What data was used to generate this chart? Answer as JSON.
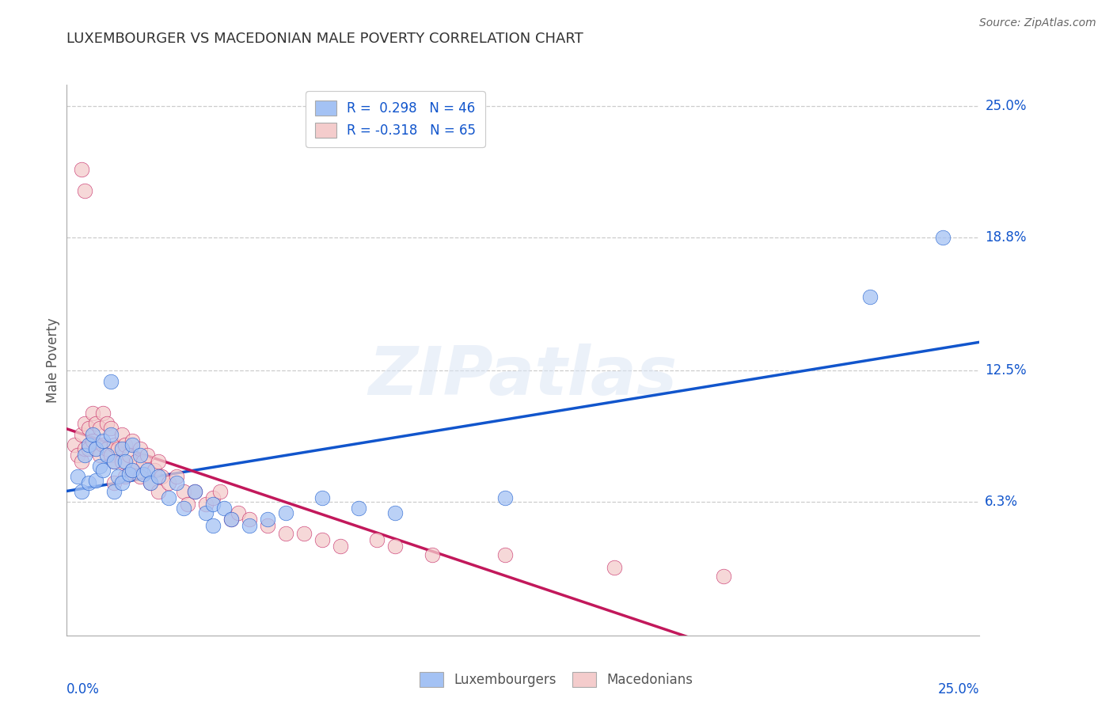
{
  "title": "LUXEMBOURGER VS MACEDONIAN MALE POVERTY CORRELATION CHART",
  "source": "Source: ZipAtlas.com",
  "ylabel": "Male Poverty",
  "xlim": [
    0.0,
    0.25
  ],
  "ylim": [
    0.0,
    0.25
  ],
  "xtick_labels": [
    "0.0%",
    "25.0%"
  ],
  "ytick_labels": [
    "6.3%",
    "12.5%",
    "18.8%",
    "25.0%"
  ],
  "ytick_values": [
    0.063,
    0.125,
    0.188,
    0.25
  ],
  "legend_r1": "R =  0.298",
  "legend_n1": "N = 46",
  "legend_r2": "R = -0.318",
  "legend_n2": "N = 65",
  "lux_color": "#a4c2f4",
  "mac_color": "#f4cccc",
  "lux_line_color": "#1155cc",
  "mac_line_color": "#c2185b",
  "lux_label": "Luxembourgers",
  "mac_label": "Macedonians",
  "watermark_text": "ZIPatlas",
  "lux_scatter_x": [
    0.003,
    0.004,
    0.005,
    0.006,
    0.006,
    0.007,
    0.008,
    0.008,
    0.009,
    0.01,
    0.01,
    0.011,
    0.012,
    0.012,
    0.013,
    0.013,
    0.014,
    0.015,
    0.015,
    0.016,
    0.017,
    0.018,
    0.018,
    0.02,
    0.021,
    0.022,
    0.023,
    0.025,
    0.028,
    0.03,
    0.032,
    0.035,
    0.038,
    0.04,
    0.04,
    0.043,
    0.045,
    0.05,
    0.055,
    0.06,
    0.07,
    0.08,
    0.09,
    0.12,
    0.22,
    0.24
  ],
  "lux_scatter_y": [
    0.075,
    0.068,
    0.085,
    0.09,
    0.072,
    0.095,
    0.088,
    0.073,
    0.08,
    0.092,
    0.078,
    0.085,
    0.12,
    0.095,
    0.082,
    0.068,
    0.075,
    0.088,
    0.072,
    0.082,
    0.076,
    0.09,
    0.078,
    0.085,
    0.076,
    0.078,
    0.072,
    0.075,
    0.065,
    0.072,
    0.06,
    0.068,
    0.058,
    0.062,
    0.052,
    0.06,
    0.055,
    0.052,
    0.055,
    0.058,
    0.065,
    0.06,
    0.058,
    0.065,
    0.16,
    0.188
  ],
  "mac_scatter_x": [
    0.002,
    0.003,
    0.004,
    0.004,
    0.005,
    0.005,
    0.006,
    0.006,
    0.007,
    0.007,
    0.008,
    0.008,
    0.009,
    0.009,
    0.01,
    0.01,
    0.011,
    0.011,
    0.012,
    0.012,
    0.013,
    0.013,
    0.013,
    0.014,
    0.015,
    0.015,
    0.016,
    0.016,
    0.017,
    0.018,
    0.018,
    0.019,
    0.02,
    0.02,
    0.021,
    0.022,
    0.023,
    0.024,
    0.025,
    0.025,
    0.026,
    0.028,
    0.03,
    0.032,
    0.033,
    0.035,
    0.038,
    0.04,
    0.042,
    0.045,
    0.047,
    0.05,
    0.055,
    0.06,
    0.065,
    0.07,
    0.075,
    0.085,
    0.09,
    0.1,
    0.12,
    0.15,
    0.18,
    0.004,
    0.005
  ],
  "mac_scatter_y": [
    0.09,
    0.085,
    0.095,
    0.082,
    0.1,
    0.088,
    0.098,
    0.088,
    0.105,
    0.092,
    0.1,
    0.088,
    0.098,
    0.085,
    0.105,
    0.09,
    0.1,
    0.088,
    0.098,
    0.085,
    0.09,
    0.082,
    0.072,
    0.088,
    0.095,
    0.082,
    0.09,
    0.075,
    0.085,
    0.092,
    0.078,
    0.082,
    0.088,
    0.075,
    0.082,
    0.085,
    0.072,
    0.078,
    0.082,
    0.068,
    0.075,
    0.072,
    0.075,
    0.068,
    0.062,
    0.068,
    0.062,
    0.065,
    0.068,
    0.055,
    0.058,
    0.055,
    0.052,
    0.048,
    0.048,
    0.045,
    0.042,
    0.045,
    0.042,
    0.038,
    0.038,
    0.032,
    0.028,
    0.22,
    0.21
  ]
}
